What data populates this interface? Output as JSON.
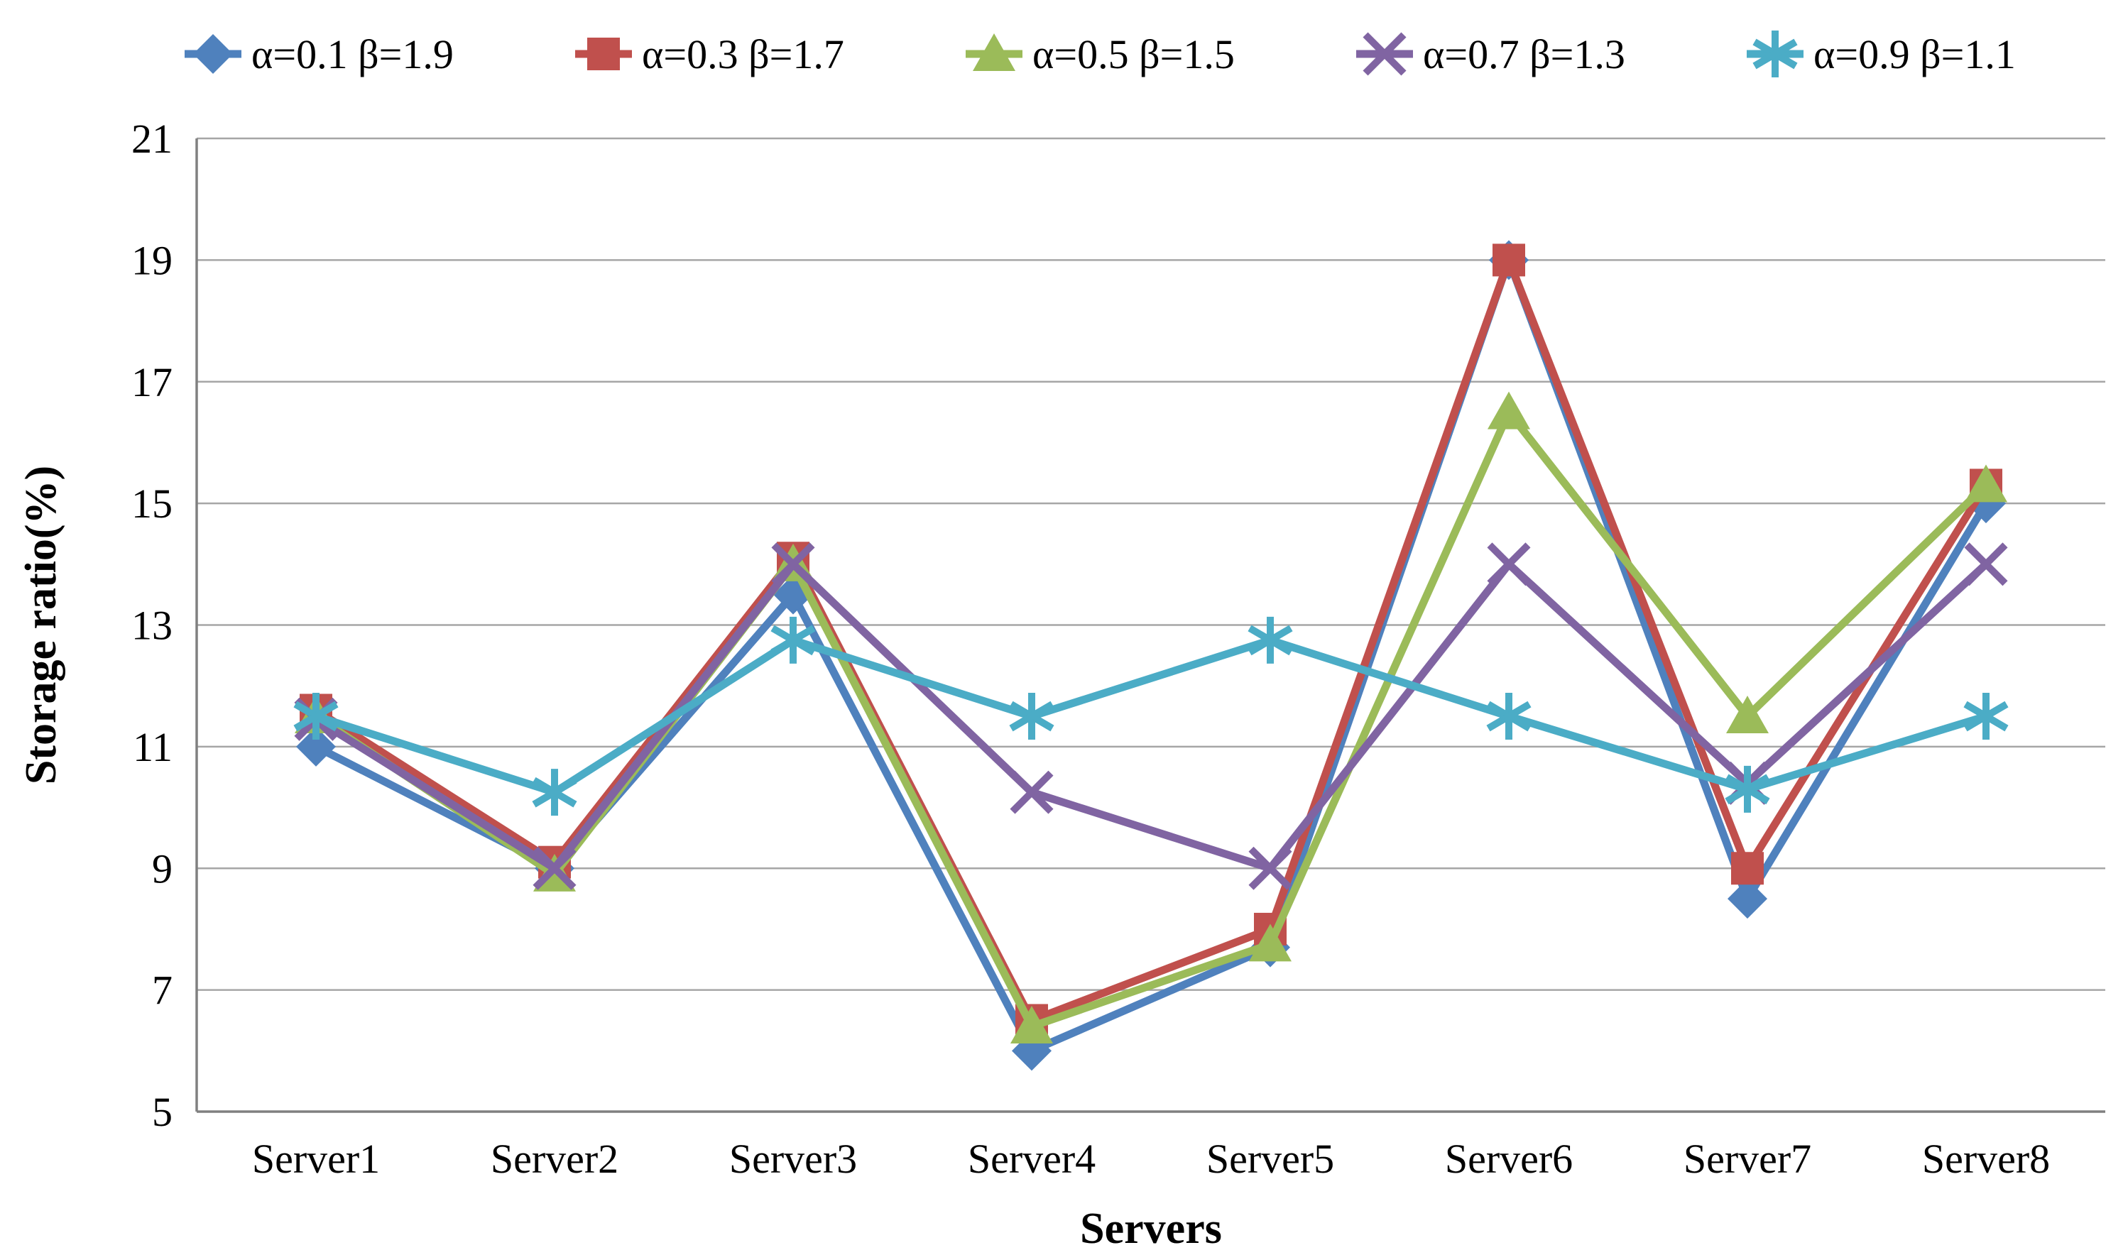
{
  "chart_data": {
    "type": "line",
    "title": "",
    "xlabel": "Servers",
    "ylabel": "Storage ratio(%)",
    "categories": [
      "Server1",
      "Server2",
      "Server3",
      "Server4",
      "Server5",
      "Server6",
      "Server7",
      "Server8"
    ],
    "ylim": [
      5,
      21
    ],
    "yticks": [
      5,
      7,
      9,
      11,
      13,
      15,
      17,
      19,
      21
    ],
    "grid": true,
    "legend_position": "top",
    "colors": {
      "grid": "#a6a6a6",
      "axis": "#808080",
      "text": "#000000",
      "background": "#ffffff"
    },
    "series": [
      {
        "name": "α=0.1 β=1.9",
        "marker": "diamond",
        "color": "#4F81BD",
        "values": [
          11.0,
          9.0,
          13.5,
          6.0,
          7.7,
          19.0,
          8.5,
          15.0
        ]
      },
      {
        "name": "α=0.3 β=1.7",
        "marker": "square",
        "color": "#C0504D",
        "values": [
          11.6,
          9.1,
          14.1,
          6.5,
          8.0,
          19.0,
          9.0,
          15.3
        ]
      },
      {
        "name": "α=0.5 β=1.5",
        "marker": "triangle",
        "color": "#9BBB59",
        "values": [
          11.5,
          8.9,
          14.0,
          6.4,
          7.75,
          16.5,
          11.5,
          15.3
        ]
      },
      {
        "name": "α=0.7 β=1.3",
        "marker": "cross",
        "color": "#8064A2",
        "values": [
          11.45,
          9.0,
          14.0,
          10.25,
          9.0,
          14.0,
          10.4,
          14.0
        ]
      },
      {
        "name": "α=0.9 β=1.1",
        "marker": "asterisk",
        "color": "#4BACC6",
        "values": [
          11.5,
          10.25,
          12.75,
          11.5,
          12.75,
          11.5,
          10.3,
          11.5
        ]
      }
    ]
  }
}
